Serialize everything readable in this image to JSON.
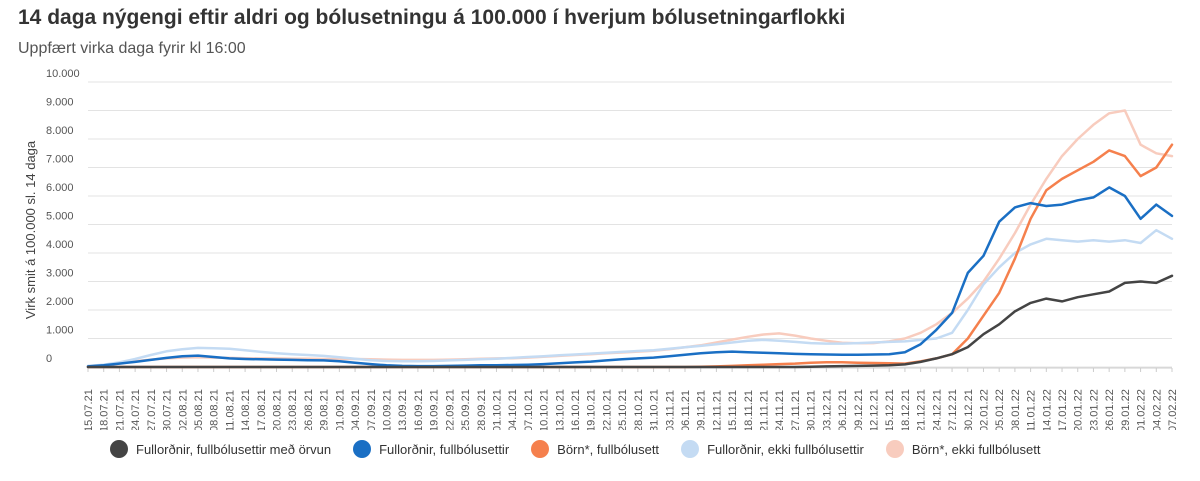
{
  "title": "14 daga nýgengi eftir aldri og bólusetningu á 100.000 í hverjum bólusetningarflokki",
  "subtitle": "Uppfært virka daga fyrir kl 16:00",
  "chart_data": {
    "type": "line",
    "ylabel": "Virk smit á 100.000 sl. 14 daga",
    "xlabel": "",
    "ylim": [
      0,
      10000
    ],
    "yticks": [
      {
        "value": 0,
        "label": "0"
      },
      {
        "value": 1000,
        "label": "1.000"
      },
      {
        "value": 2000,
        "label": "2.000"
      },
      {
        "value": 3000,
        "label": "3.000"
      },
      {
        "value": 4000,
        "label": "4.000"
      },
      {
        "value": 5000,
        "label": "5.000"
      },
      {
        "value": 6000,
        "label": "6.000"
      },
      {
        "value": 7000,
        "label": "7.000"
      },
      {
        "value": 8000,
        "label": "8.000"
      },
      {
        "value": 9000,
        "label": "9.000"
      },
      {
        "value": 10000,
        "label": "10.000"
      }
    ],
    "grid": true,
    "legend_position": "bottom",
    "categories": [
      "15.07.21",
      "18.07.21",
      "21.07.21",
      "24.07.21",
      "27.07.21",
      "30.07.21",
      "02.08.21",
      "05.08.21",
      "08.08.21",
      "11.08.21",
      "14.08.21",
      "17.08.21",
      "20.08.21",
      "23.08.21",
      "26.08.21",
      "29.08.21",
      "01.09.21",
      "04.09.21",
      "07.09.21",
      "10.09.21",
      "13.09.21",
      "16.09.21",
      "19.09.21",
      "22.09.21",
      "25.09.21",
      "28.09.21",
      "01.10.21",
      "04.10.21",
      "07.10.21",
      "10.10.21",
      "13.10.21",
      "16.10.21",
      "19.10.21",
      "22.10.21",
      "25.10.21",
      "28.10.21",
      "31.10.21",
      "03.11.21",
      "06.11.21",
      "09.11.21",
      "12.11.21",
      "15.11.21",
      "18.11.21",
      "21.11.21",
      "24.11.21",
      "27.11.21",
      "30.11.21",
      "03.12.21",
      "06.12.21",
      "09.12.21",
      "12.12.21",
      "15.12.21",
      "18.12.21",
      "21.12.21",
      "24.12.21",
      "27.12.21",
      "30.12.21",
      "02.01.22",
      "05.01.22",
      "08.01.22",
      "11.01.22",
      "14.01.22",
      "17.01.22",
      "20.01.22",
      "23.01.22",
      "26.01.22",
      "29.01.22",
      "01.02.22",
      "04.02.22",
      "07.02.22"
    ],
    "series": [
      {
        "name": "Fullorðnir, fullbólusettir með örvun",
        "color": "#444444",
        "values": [
          0,
          0,
          0,
          0,
          0,
          0,
          0,
          0,
          0,
          0,
          0,
          0,
          0,
          0,
          0,
          0,
          0,
          0,
          0,
          0,
          0,
          0,
          0,
          0,
          0,
          0,
          0,
          0,
          0,
          0,
          0,
          0,
          0,
          0,
          0,
          0,
          0,
          0,
          0,
          0,
          0,
          0,
          0,
          0,
          0,
          0,
          10,
          20,
          30,
          40,
          50,
          60,
          90,
          180,
          300,
          450,
          700,
          1150,
          1500,
          1950,
          2250,
          2400,
          2300,
          2450,
          2550,
          2650,
          2950,
          3000,
          2950,
          3200
        ]
      },
      {
        "name": "Fullorðnir, fullbólusettir",
        "color": "#1a6fc4",
        "values": [
          20,
          60,
          120,
          180,
          250,
          320,
          380,
          400,
          350,
          300,
          280,
          270,
          260,
          250,
          240,
          230,
          200,
          150,
          100,
          60,
          40,
          30,
          30,
          40,
          50,
          60,
          60,
          70,
          80,
          100,
          130,
          160,
          190,
          230,
          270,
          300,
          330,
          380,
          430,
          480,
          520,
          540,
          520,
          500,
          480,
          460,
          450,
          440,
          430,
          430,
          440,
          450,
          520,
          800,
          1300,
          1900,
          3300,
          3900,
          5100,
          5600,
          5750,
          5650,
          5700,
          5850,
          5950,
          6300,
          6000,
          5200,
          5700,
          5300
        ]
      },
      {
        "name": "Börn*, fullbólusett",
        "color": "#f5804d",
        "values": [
          0,
          0,
          0,
          0,
          0,
          0,
          0,
          0,
          0,
          0,
          0,
          0,
          0,
          0,
          0,
          0,
          0,
          0,
          0,
          0,
          0,
          0,
          0,
          0,
          0,
          0,
          0,
          0,
          0,
          0,
          0,
          0,
          0,
          0,
          0,
          0,
          0,
          0,
          0,
          10,
          20,
          40,
          60,
          80,
          100,
          120,
          150,
          170,
          170,
          150,
          140,
          130,
          120,
          200,
          300,
          450,
          1000,
          1800,
          2600,
          3800,
          5200,
          6200,
          6600,
          6900,
          7200,
          7600,
          7400,
          6700,
          7000,
          7800
        ]
      },
      {
        "name": "Fullorðnir, ekki fullbólusettir",
        "color": "#c4dbf3",
        "values": [
          40,
          80,
          160,
          280,
          420,
          550,
          620,
          670,
          660,
          640,
          590,
          530,
          480,
          450,
          420,
          390,
          340,
          290,
          240,
          210,
          200,
          200,
          210,
          230,
          250,
          270,
          290,
          320,
          350,
          380,
          410,
          440,
          470,
          500,
          530,
          560,
          590,
          640,
          690,
          740,
          800,
          860,
          920,
          950,
          920,
          880,
          840,
          820,
          820,
          840,
          860,
          880,
          900,
          950,
          1000,
          1200,
          2000,
          2900,
          3500,
          4000,
          4300,
          4500,
          4450,
          4400,
          4450,
          4400,
          4450,
          4350,
          4800,
          4500
        ]
      },
      {
        "name": "Börn*, ekki fullbólusett",
        "color": "#f8ccbe",
        "values": [
          30,
          70,
          130,
          200,
          260,
          300,
          330,
          340,
          330,
          320,
          310,
          300,
          300,
          290,
          290,
          280,
          280,
          280,
          270,
          260,
          250,
          250,
          250,
          260,
          270,
          290,
          300,
          310,
          330,
          360,
          390,
          420,
          450,
          480,
          510,
          540,
          570,
          620,
          690,
          760,
          860,
          960,
          1060,
          1140,
          1180,
          1100,
          1000,
          920,
          850,
          830,
          840,
          900,
          1000,
          1200,
          1500,
          1900,
          2400,
          3000,
          3800,
          4700,
          5700,
          6600,
          7400,
          8000,
          8500,
          8900,
          9000,
          7800,
          7500,
          7400
        ]
      }
    ]
  }
}
